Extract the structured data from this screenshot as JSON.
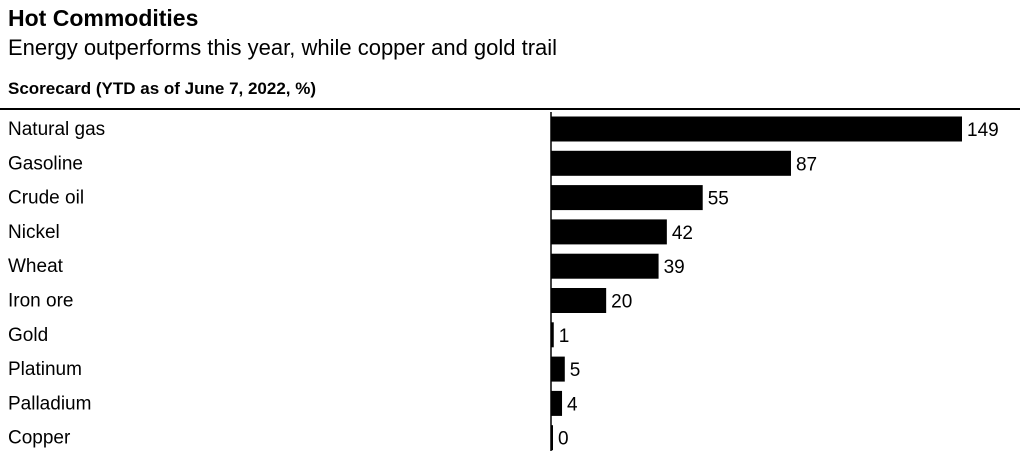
{
  "title": "Hot Commodities",
  "subtitle": "Energy outperforms this year, while copper and gold trail",
  "section_label": "Scorecard (YTD as of June 7, 2022, %)",
  "colors": {
    "bar": "#000000",
    "axis": "#000000",
    "text": "#000000",
    "background": "#ffffff"
  },
  "chart_data": {
    "type": "bar",
    "orientation": "horizontal",
    "title": "Hot Commodities",
    "subtitle": "Energy outperforms this year, while copper and gold trail",
    "categories": [
      "Natural gas",
      "Gasoline",
      "Crude oil",
      "Nickel",
      "Wheat",
      "Iron ore",
      "Gold",
      "Platinum",
      "Palladium",
      "Copper"
    ],
    "values": [
      149,
      87,
      55,
      42,
      39,
      20,
      1,
      5,
      4,
      0
    ],
    "value_labels": [
      "149",
      "87",
      "55",
      "42",
      "39",
      "20",
      "1",
      "5",
      "4",
      "0"
    ],
    "xlim": [
      0,
      149
    ],
    "grid": false,
    "legend": "none"
  }
}
